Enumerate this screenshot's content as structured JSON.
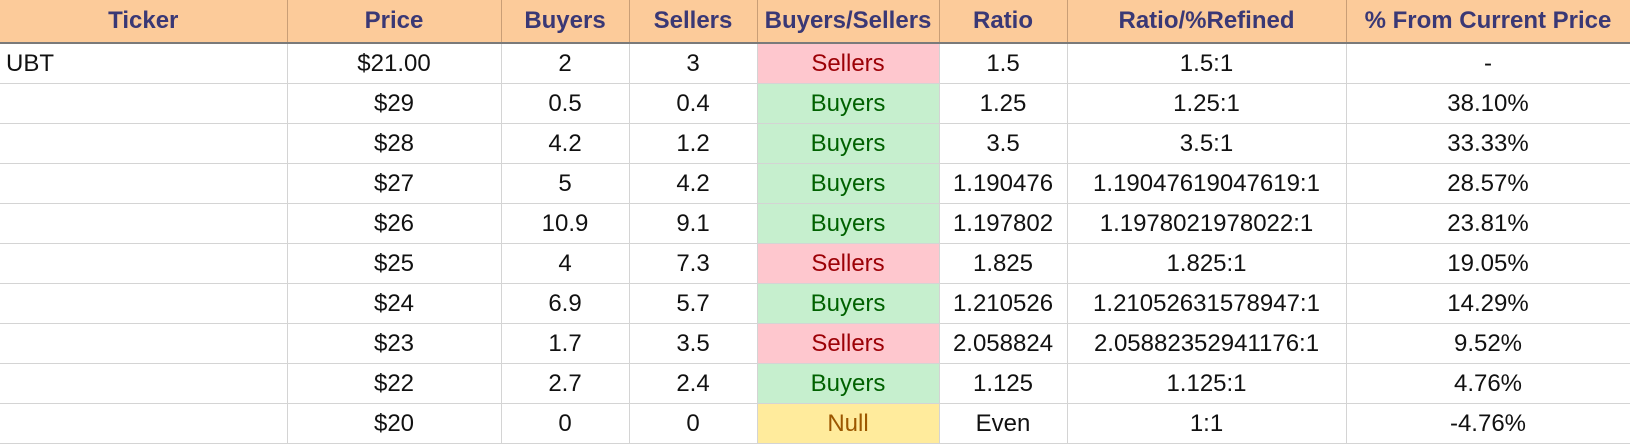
{
  "table": {
    "headers": [
      "Ticker",
      "Price",
      "Buyers",
      "Sellers",
      "Buyers/Sellers",
      "Ratio",
      "Ratio/%Refined",
      "% From Current Price"
    ],
    "rows": [
      {
        "ticker": "UBT",
        "price": "$21.00",
        "buyers": "2",
        "sellers": "3",
        "signal": "Sellers",
        "ratio": "1.5",
        "refined": "1.5:1",
        "pct": "-"
      },
      {
        "ticker": "",
        "price": "$29",
        "buyers": "0.5",
        "sellers": "0.4",
        "signal": "Buyers",
        "ratio": "1.25",
        "refined": "1.25:1",
        "pct": "38.10%"
      },
      {
        "ticker": "",
        "price": "$28",
        "buyers": "4.2",
        "sellers": "1.2",
        "signal": "Buyers",
        "ratio": "3.5",
        "refined": "3.5:1",
        "pct": "33.33%"
      },
      {
        "ticker": "",
        "price": "$27",
        "buyers": "5",
        "sellers": "4.2",
        "signal": "Buyers",
        "ratio": "1.190476",
        "refined": "1.19047619047619:1",
        "pct": "28.57%"
      },
      {
        "ticker": "",
        "price": "$26",
        "buyers": "10.9",
        "sellers": "9.1",
        "signal": "Buyers",
        "ratio": "1.197802",
        "refined": "1.1978021978022:1",
        "pct": "23.81%"
      },
      {
        "ticker": "",
        "price": "$25",
        "buyers": "4",
        "sellers": "7.3",
        "signal": "Sellers",
        "ratio": "1.825",
        "refined": "1.825:1",
        "pct": "19.05%"
      },
      {
        "ticker": "",
        "price": "$24",
        "buyers": "6.9",
        "sellers": "5.7",
        "signal": "Buyers",
        "ratio": "1.210526",
        "refined": "1.21052631578947:1",
        "pct": "14.29%"
      },
      {
        "ticker": "",
        "price": "$23",
        "buyers": "1.7",
        "sellers": "3.5",
        "signal": "Sellers",
        "ratio": "2.058824",
        "refined": "2.05882352941176:1",
        "pct": "9.52%"
      },
      {
        "ticker": "",
        "price": "$22",
        "buyers": "2.7",
        "sellers": "2.4",
        "signal": "Buyers",
        "ratio": "1.125",
        "refined": "1.125:1",
        "pct": "4.76%"
      },
      {
        "ticker": "",
        "price": "$20",
        "buyers": "0",
        "sellers": "0",
        "signal": "Null",
        "ratio": "Even",
        "refined": "1:1",
        "pct": "-4.76%"
      }
    ]
  },
  "colors": {
    "header_bg": "#fccb9a",
    "header_text": "#3a3875",
    "sellers_bg": "#fec7ce",
    "sellers_text": "#9c0006",
    "buyers_bg": "#c6efce",
    "buyers_text": "#006100",
    "null_bg": "#ffeb9c",
    "null_text": "#9c5700"
  }
}
